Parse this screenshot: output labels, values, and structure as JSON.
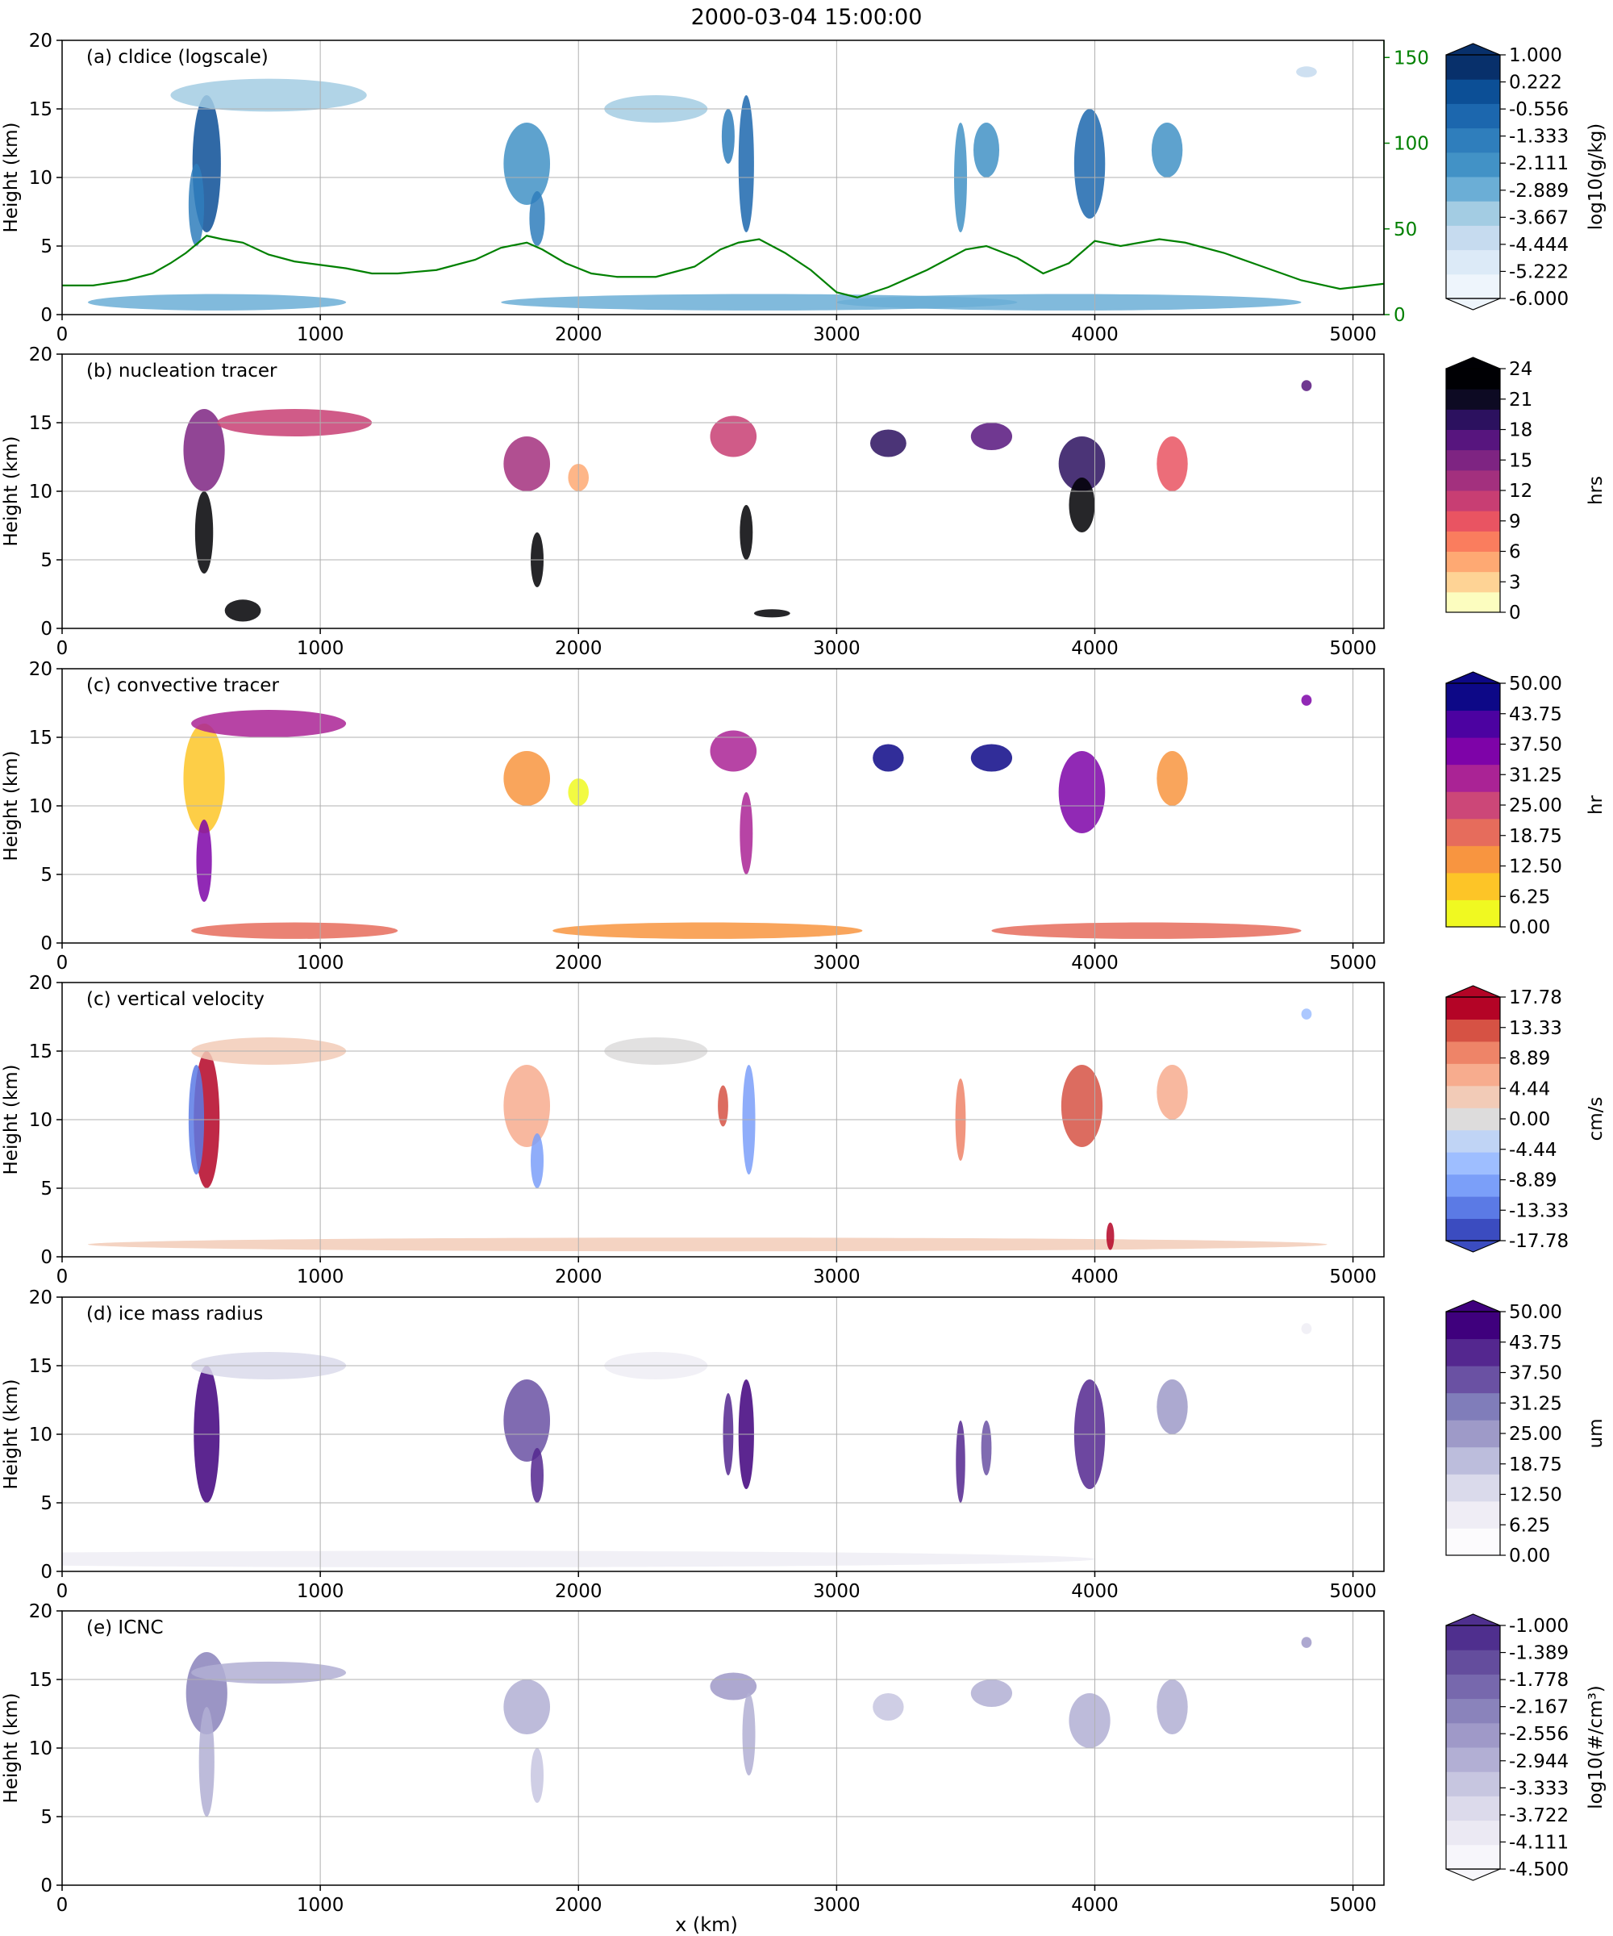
{
  "figure_title": "2000-03-04 15:00:00",
  "x_axis_label": "x (km)",
  "chart_data": [
    {
      "id": "a",
      "type": "heatmap",
      "title": "(a) cldice (logscale)",
      "ylabel": "Height (km)",
      "xlim": [
        0,
        5120
      ],
      "ylim": [
        0,
        20
      ],
      "xticks": [
        0,
        1000,
        2000,
        3000,
        4000,
        5000
      ],
      "yticks": [
        0,
        5,
        10,
        15,
        20
      ],
      "colorbar": {
        "label": "log10(g/kg)",
        "ticks": [
          "1.000",
          "0.222",
          "-0.556",
          "-1.333",
          "-2.111",
          "-2.889",
          "-3.667",
          "-4.444",
          "-5.222",
          "-6.000"
        ],
        "colors": [
          "#eef5fc",
          "#dceaf7",
          "#c6dbef",
          "#a3cce3",
          "#6baed6",
          "#4292c6",
          "#2f7ebc",
          "#1c67ae",
          "#0c4f96",
          "#08306b"
        ],
        "extend_top": true,
        "extend_bottom": true
      },
      "secondary_axis": {
        "ticks": [
          0,
          50,
          100,
          150
        ],
        "ylim": [
          0,
          160
        ],
        "color": "#008000",
        "line": {
          "x": [
            0,
            120,
            250,
            350,
            420,
            480,
            560,
            620,
            700,
            800,
            900,
            1000,
            1100,
            1200,
            1300,
            1450,
            1600,
            1700,
            1800,
            1860,
            1950,
            2050,
            2150,
            2300,
            2450,
            2550,
            2620,
            2700,
            2800,
            2900,
            3000,
            3080,
            3200,
            3350,
            3500,
            3580,
            3700,
            3800,
            3900,
            4000,
            4100,
            4250,
            4350,
            4500,
            4650,
            4800,
            4950,
            5120
          ],
          "y": [
            17,
            17,
            20,
            24,
            30,
            36,
            46,
            44,
            42,
            35,
            31,
            29,
            27,
            24,
            24,
            26,
            32,
            39,
            42,
            38,
            30,
            24,
            22,
            22,
            28,
            38,
            42,
            44,
            36,
            26,
            13,
            10,
            16,
            26,
            38,
            40,
            33,
            24,
            30,
            43,
            40,
            44,
            42,
            36,
            28,
            20,
            15,
            18
          ]
        }
      }
    },
    {
      "id": "b",
      "type": "heatmap",
      "title": "(b) nucleation tracer",
      "ylabel": "Height (km)",
      "xlim": [
        0,
        5120
      ],
      "ylim": [
        0,
        20
      ],
      "xticks": [
        0,
        1000,
        2000,
        3000,
        4000,
        5000
      ],
      "yticks": [
        0,
        5,
        10,
        15,
        20
      ],
      "colorbar": {
        "label": "hrs",
        "ticks": [
          "24",
          "21",
          "18",
          "15",
          "12",
          "9",
          "6",
          "3",
          "0"
        ],
        "colors": [
          "#fcfdbf",
          "#fed395",
          "#fea973",
          "#fa7d5e",
          "#e95462",
          "#c83e73",
          "#a3307e",
          "#7e2482",
          "#57157e",
          "#2c115f",
          "#0d0a23",
          "#000004"
        ],
        "extend_top": true,
        "extend_bottom": false
      }
    },
    {
      "id": "c1",
      "type": "heatmap",
      "title": "(c) convective tracer",
      "ylabel": "Height (km)",
      "xlim": [
        0,
        5120
      ],
      "ylim": [
        0,
        20
      ],
      "xticks": [
        0,
        1000,
        2000,
        3000,
        4000,
        5000
      ],
      "yticks": [
        0,
        5,
        10,
        15,
        20
      ],
      "colorbar": {
        "label": "hr",
        "ticks": [
          "50.00",
          "43.75",
          "37.50",
          "31.25",
          "25.00",
          "18.75",
          "12.50",
          "6.25",
          "0.00"
        ],
        "colors": [
          "#f0f921",
          "#fdc527",
          "#f89540",
          "#e66c5c",
          "#cc4778",
          "#aa2395",
          "#7e03a8",
          "#4c02a1",
          "#0d0887"
        ],
        "extend_top": true,
        "extend_bottom": false
      }
    },
    {
      "id": "c2",
      "type": "heatmap",
      "title": "(c) vertical velocity",
      "ylabel": "Height (km)",
      "xlim": [
        0,
        5120
      ],
      "ylim": [
        0,
        20
      ],
      "xticks": [
        0,
        1000,
        2000,
        3000,
        4000,
        5000
      ],
      "yticks": [
        0,
        5,
        10,
        15,
        20
      ],
      "colorbar": {
        "label": "cm/s",
        "ticks": [
          "17.78",
          "13.33",
          "8.89",
          "4.44",
          "0.00",
          "-4.44",
          "-8.89",
          "-13.33",
          "-17.78"
        ],
        "colors": [
          "#3b4cc0",
          "#5b7ae5",
          "#7b9ff9",
          "#9ebeff",
          "#c0d4f5",
          "#dddcdc",
          "#f2cbb7",
          "#f7ac8e",
          "#ee8468",
          "#d65244",
          "#b40426"
        ],
        "extend_top": true,
        "extend_bottom": true
      }
    },
    {
      "id": "d",
      "type": "heatmap",
      "title": "(d) ice mass radius",
      "ylabel": "Height (km)",
      "xlim": [
        0,
        5120
      ],
      "ylim": [
        0,
        20
      ],
      "xticks": [
        0,
        1000,
        2000,
        3000,
        4000,
        5000
      ],
      "yticks": [
        0,
        5,
        10,
        15,
        20
      ],
      "colorbar": {
        "label": "um",
        "ticks": [
          "50.00",
          "43.75",
          "37.50",
          "31.25",
          "25.00",
          "18.75",
          "12.50",
          "6.25",
          "0.00"
        ],
        "colors": [
          "#fcfbfd",
          "#efedf5",
          "#dadaeb",
          "#bcbddc",
          "#9e9ac8",
          "#807dba",
          "#6a51a3",
          "#54278f",
          "#3f007d"
        ],
        "extend_top": true,
        "extend_bottom": false
      }
    },
    {
      "id": "e",
      "type": "heatmap",
      "title": "(e) ICNC",
      "ylabel": "Height (km)",
      "xlim": [
        0,
        5120
      ],
      "ylim": [
        0,
        20
      ],
      "xticks": [
        0,
        1000,
        2000,
        3000,
        4000,
        5000
      ],
      "yticks": [
        0,
        5,
        10,
        15,
        20
      ],
      "colorbar": {
        "label": "log10(#/cm³)",
        "ticks": [
          "-1.000",
          "-1.389",
          "-1.778",
          "-2.167",
          "-2.556",
          "-2.944",
          "-3.333",
          "-3.722",
          "-4.111",
          "-4.500"
        ],
        "colors": [
          "#f7f6fb",
          "#ebe9f3",
          "#dcdaeb",
          "#c7c6e0",
          "#b2afd4",
          "#9f99c8",
          "#8a83bb",
          "#7768ad",
          "#644d9d",
          "#4f2f8e"
        ],
        "extend_top": true,
        "extend_bottom": true
      }
    }
  ]
}
